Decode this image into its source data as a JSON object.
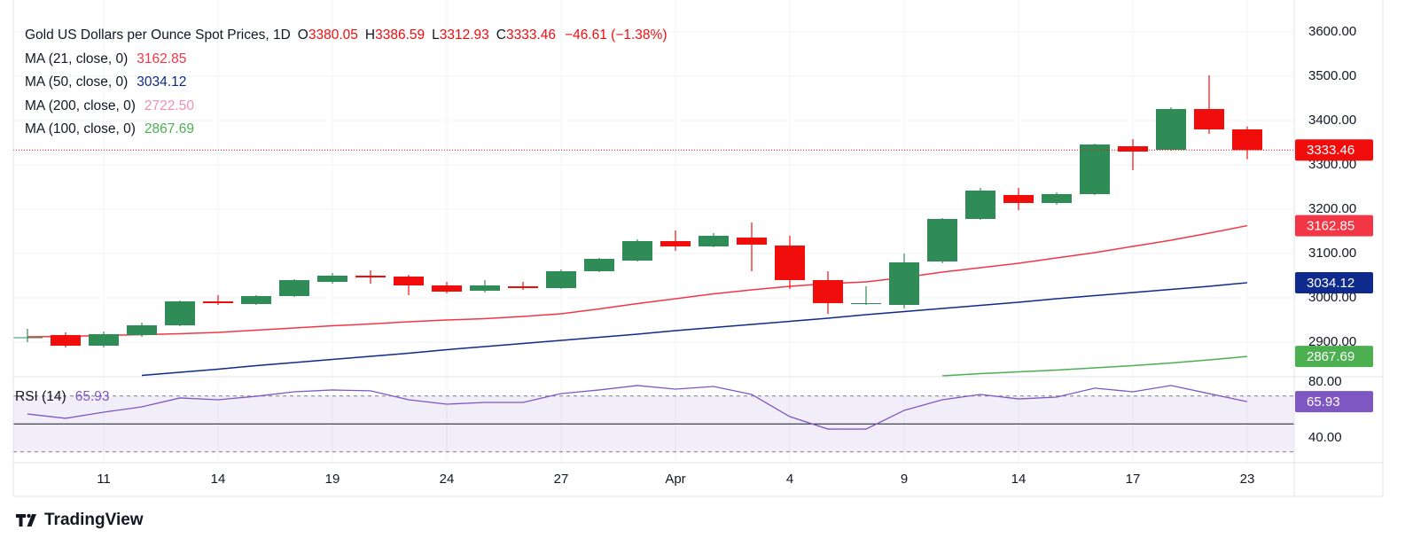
{
  "header": {
    "symbol": "Gold US Dollars per Ounce Spot Prices, 1D",
    "ohlc_labels": [
      "O",
      "H",
      "L",
      "C"
    ],
    "change": "−46.61 (−1.38%)"
  },
  "chart_data": {
    "type": "candlestick",
    "categories": [
      null,
      null,
      "11",
      null,
      null,
      "14",
      null,
      null,
      "19",
      null,
      null,
      "24",
      null,
      null,
      "27",
      null,
      null,
      "Apr",
      null,
      null,
      "4",
      null,
      null,
      "9",
      null,
      null,
      "14",
      null,
      null,
      "17",
      null,
      null,
      "23"
    ],
    "open": [
      2910,
      2916,
      2892,
      2916,
      2938,
      2992,
      2986,
      3004,
      3036,
      3050,
      3048,
      3028,
      3016,
      3026,
      3022,
      3060,
      3084,
      3128,
      3116,
      3136,
      3118,
      3040,
      2986,
      2984,
      3082,
      3178,
      3232,
      3214,
      3234,
      3342,
      3334,
      3426,
      3380.05
    ],
    "high": [
      2930,
      2922,
      2924,
      2944,
      2994,
      3006,
      3006,
      3042,
      3056,
      3062,
      3052,
      3036,
      3040,
      3036,
      3064,
      3090,
      3132,
      3152,
      3146,
      3170,
      3140,
      3060,
      3026,
      3100,
      3180,
      3248,
      3248,
      3238,
      3348,
      3358,
      3430,
      3502,
      3386.59
    ],
    "low": [
      2900,
      2888,
      2888,
      2912,
      2936,
      2984,
      2984,
      3002,
      3032,
      3032,
      3006,
      3010,
      3012,
      3018,
      3020,
      3058,
      3082,
      3106,
      3114,
      3060,
      3020,
      2964,
      2984,
      2976,
      3078,
      3176,
      3198,
      3210,
      3232,
      3288,
      3332,
      3370,
      3312.93
    ],
    "close": [
      2911,
      2892,
      2918,
      2938,
      2992,
      2988,
      3004,
      3040,
      3050,
      3046,
      3028,
      3014,
      3028,
      3022,
      3060,
      3088,
      3128,
      3116,
      3140,
      3120,
      3040,
      2988,
      2988,
      3080,
      3178,
      3242,
      3214,
      3234,
      3346,
      3330,
      3426,
      3380,
      3333.46
    ],
    "up_color": "#2f8c57",
    "down_color": "#f20d0d",
    "ylim": [
      2822,
      3672
    ],
    "yticks": [
      {
        "value": 2900,
        "label": "2900.00"
      },
      {
        "value": 3000,
        "label": "3000.00"
      },
      {
        "value": 3100,
        "label": "3100.00"
      },
      {
        "value": 3200,
        "label": "3200.00"
      },
      {
        "value": 3300,
        "label": "3300.00"
      },
      {
        "value": 3400,
        "label": "3400.00"
      },
      {
        "value": 3500,
        "label": "3500.00"
      },
      {
        "value": 3600,
        "label": "3600.00"
      }
    ],
    "grid": true,
    "ma": [
      {
        "name": "MA (21, close, 0)",
        "color": "#f23645",
        "values": [
          2912,
          2913,
          2915,
          2917,
          2919,
          2922,
          2927,
          2932,
          2937,
          2941,
          2946,
          2950,
          2953,
          2958,
          2964,
          2975,
          2987,
          2998,
          3009,
          3018,
          3026,
          3032,
          3036,
          3046,
          3058,
          3068,
          3078,
          3090,
          3102,
          3116,
          3130,
          3146,
          3162.85
        ]
      },
      {
        "name": "MA (50, close, 0)",
        "color": "#0d2a8c",
        "values": [
          null,
          null,
          null,
          2825,
          2832,
          2839,
          2847,
          2854,
          2861,
          2868,
          2875,
          2883,
          2890,
          2897,
          2904,
          2911,
          2918,
          2926,
          2933,
          2940,
          2947,
          2954,
          2962,
          2969,
          2976,
          2983,
          2990,
          2998,
          3005,
          3012,
          3019,
          3026,
          3034.12
        ]
      },
      {
        "name": "MA (200, close, 0)",
        "color": "#f48fb1",
        "value_label": "2722.50"
      },
      {
        "name": "MA (100, close, 0)",
        "color": "#4caf50",
        "values": [
          null,
          null,
          null,
          null,
          null,
          null,
          null,
          null,
          null,
          null,
          null,
          null,
          null,
          null,
          null,
          null,
          null,
          null,
          null,
          null,
          null,
          null,
          null,
          null,
          2824,
          2829,
          2833,
          2837,
          2842,
          2847,
          2853,
          2860,
          2867.69
        ]
      }
    ],
    "rsi": {
      "name": "RSI (14)",
      "color": "#7e57c2",
      "values": [
        57.1,
        54.0,
        58.4,
        62.2,
        68.6,
        67.3,
        69.8,
        73.0,
        74.3,
        73.7,
        67.3,
        64.1,
        65.4,
        65.4,
        71.7,
        74.3,
        77.5,
        74.9,
        76.8,
        71.1,
        55.2,
        46.3,
        46.3,
        59.7,
        67.3,
        71.1,
        67.9,
        69.2,
        75.6,
        73.0,
        77.5,
        71.7,
        65.93
      ],
      "ylim": [
        22.2,
        83.8
      ],
      "yticks": [
        {
          "value": 40,
          "label": "40.00"
        },
        {
          "value": 80,
          "label": "80.00"
        }
      ],
      "levels": [
        {
          "value": 70,
          "style": "dashed"
        },
        {
          "value": 50,
          "style": "solid"
        },
        {
          "value": 30,
          "style": "dashed"
        }
      ]
    }
  },
  "footer": {
    "brand": "TradingView"
  }
}
